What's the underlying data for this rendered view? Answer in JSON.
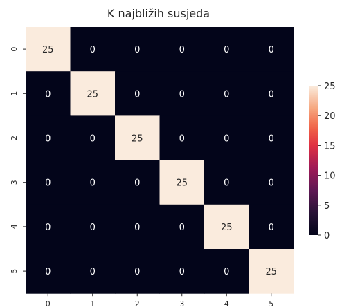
{
  "chart_data": {
    "type": "heatmap",
    "title": "K najbližih susjeda",
    "x_categories": [
      "0",
      "1",
      "2",
      "3",
      "4",
      "5"
    ],
    "y_categories": [
      "0",
      "1",
      "2",
      "3",
      "4",
      "5"
    ],
    "values": [
      [
        25,
        0,
        0,
        0,
        0,
        0
      ],
      [
        0,
        25,
        0,
        0,
        0,
        0
      ],
      [
        0,
        0,
        25,
        0,
        0,
        0
      ],
      [
        0,
        0,
        0,
        25,
        0,
        0
      ],
      [
        0,
        0,
        0,
        0,
        25,
        0
      ],
      [
        0,
        0,
        0,
        0,
        0,
        25
      ]
    ],
    "colorbar": {
      "min": 0,
      "max": 25,
      "ticks": [
        0,
        5,
        10,
        15,
        20,
        25
      ]
    },
    "colormap": "rocket",
    "colors": {
      "low": "#03051a",
      "high": "#faebdd"
    }
  }
}
